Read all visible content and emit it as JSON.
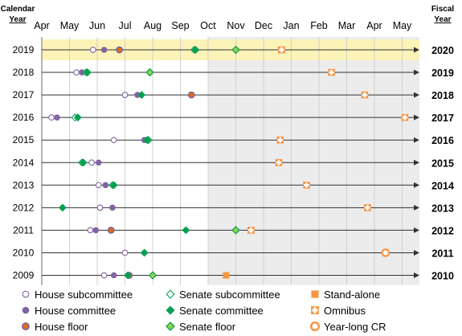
{
  "chart_data": {
    "type": "scatter",
    "left_header": [
      "Calendar",
      "Year"
    ],
    "right_header": [
      "Fiscal",
      "Year"
    ],
    "months": [
      "Apr",
      "May",
      "Jun",
      "Jul",
      "Aug",
      "Sep",
      "Oct",
      "Nov",
      "Dec",
      "Jan",
      "Feb",
      "Mar",
      "Apr",
      "May"
    ],
    "calendar_years": [
      2019,
      2018,
      2017,
      2016,
      2015,
      2014,
      2013,
      2012,
      2011,
      2010,
      2009
    ],
    "fiscal_years": [
      2020,
      2019,
      2018,
      2017,
      2016,
      2015,
      2014,
      2013,
      2012,
      2011,
      2010
    ],
    "highlight_row": 2019,
    "shaded_from_month": "Oct",
    "colors": {
      "house": "#8064a2",
      "house_floor_fill": "#e46c0a",
      "senate": "#00a050",
      "senate_floor_fill": "#92d050",
      "approps": "#f79646",
      "highlight": "#fbf3b8",
      "shade": "#ececec"
    },
    "series": [
      {
        "name": "House subcommittee",
        "marker": "circle-open",
        "color": "house",
        "points": [
          [
            2019,
            1.85
          ],
          [
            2018,
            1.25
          ],
          [
            2017,
            3.0
          ],
          [
            2016,
            0.35
          ],
          [
            2015,
            2.6
          ],
          [
            2014,
            1.8
          ],
          [
            2013,
            2.05
          ],
          [
            2012,
            2.1
          ],
          [
            2011,
            1.75
          ],
          [
            2010,
            3.0
          ],
          [
            2009,
            2.25
          ]
        ]
      },
      {
        "name": "House committee",
        "marker": "circle",
        "color": "house",
        "points": [
          [
            2019,
            2.25
          ],
          [
            2018,
            1.45
          ],
          [
            2017,
            3.45
          ],
          [
            2016,
            0.55
          ],
          [
            2015,
            3.7
          ],
          [
            2014,
            2.05
          ],
          [
            2013,
            2.3
          ],
          [
            2012,
            2.55
          ],
          [
            2011,
            1.95
          ],
          [
            2009,
            2.6
          ]
        ]
      },
      {
        "name": "House floor",
        "marker": "circle-ring",
        "color": "house",
        "points": [
          [
            2019,
            2.8
          ],
          [
            2017,
            5.4
          ],
          [
            2011,
            2.5
          ],
          [
            2009,
            3.15
          ]
        ]
      },
      {
        "name": "Senate subcommittee",
        "marker": "diamond-open",
        "color": "senate",
        "points": [
          [
            2019,
            5.5
          ],
          [
            2018,
            1.6
          ],
          [
            2016,
            1.2
          ],
          [
            2015,
            3.85
          ],
          [
            2014,
            1.45
          ],
          [
            2013,
            2.55
          ]
        ]
      },
      {
        "name": "Senate committee",
        "marker": "diamond",
        "color": "senate",
        "points": [
          [
            2019,
            5.55
          ],
          [
            2018,
            1.65
          ],
          [
            2017,
            3.6
          ],
          [
            2016,
            1.3
          ],
          [
            2015,
            3.8
          ],
          [
            2014,
            1.5
          ],
          [
            2013,
            2.6
          ],
          [
            2012,
            0.75
          ],
          [
            2011,
            5.2
          ],
          [
            2010,
            3.7
          ],
          [
            2009,
            3.1
          ]
        ]
      },
      {
        "name": "Senate floor",
        "marker": "diamond-lime",
        "color": "senate",
        "points": [
          [
            2019,
            7.0
          ],
          [
            2018,
            3.9
          ],
          [
            2011,
            7.0
          ],
          [
            2009,
            4.0
          ]
        ]
      },
      {
        "name": "Stand-alone",
        "marker": "square",
        "color": "approps",
        "points": [
          [
            2009,
            6.65
          ]
        ]
      },
      {
        "name": "Omnibus",
        "marker": "square-cross",
        "color": "approps",
        "points": [
          [
            2019,
            8.65
          ],
          [
            2018,
            10.45
          ],
          [
            2017,
            11.65
          ],
          [
            2016,
            13.1
          ],
          [
            2015,
            8.6
          ],
          [
            2014,
            8.55
          ],
          [
            2013,
            9.55
          ],
          [
            2012,
            11.75
          ],
          [
            2011,
            7.55
          ]
        ]
      },
      {
        "name": "Year-long CR",
        "marker": "ring",
        "color": "approps",
        "points": [
          [
            2010,
            12.4
          ]
        ]
      }
    ],
    "legend": [
      [
        "House subcommittee",
        "Senate subcommittee",
        "Stand-alone"
      ],
      [
        "House committee",
        "Senate committee",
        "Omnibus"
      ],
      [
        "House floor",
        "Senate floor",
        "Year-long CR"
      ]
    ]
  }
}
